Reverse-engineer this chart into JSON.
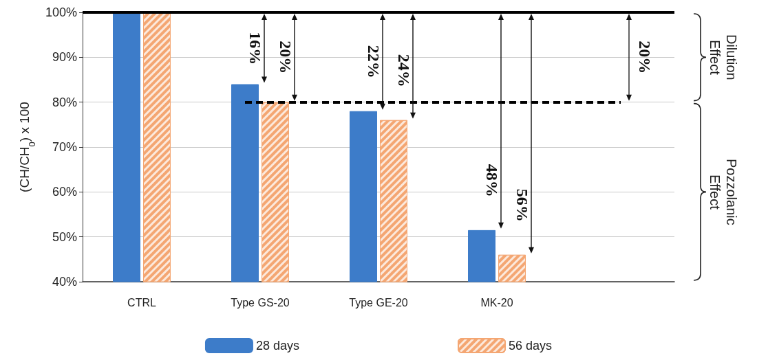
{
  "chart_data": {
    "type": "bar",
    "ylabel": "(CH/CH$_{0}$) x 100",
    "categories": [
      "CTRL",
      "Type GS-20",
      "Type GE-20",
      "MK-20",
      null
    ],
    "series": [
      {
        "name": "28 days",
        "color": "#3d7cc9",
        "values": [
          100,
          84,
          78,
          51.5,
          null
        ]
      },
      {
        "name": "56 days",
        "color": "#f4a672",
        "values": [
          100,
          80,
          76,
          46,
          null
        ]
      }
    ],
    "ylim": [
      40,
      100
    ],
    "yticks": [
      {
        "value": 40,
        "label": "40%"
      },
      {
        "value": 50,
        "label": "50%"
      },
      {
        "value": 60,
        "label": "60%"
      },
      {
        "value": 70,
        "label": "70%"
      },
      {
        "value": 80,
        "label": "80%"
      },
      {
        "value": 90,
        "label": "90%"
      },
      {
        "value": 100,
        "label": "100%"
      }
    ],
    "grid": "y",
    "legend": "bottom",
    "ref_lines": [
      {
        "axis": "y",
        "value": 100,
        "color": "#000000",
        "line_style": "solid"
      },
      {
        "axis": "y",
        "value": 80,
        "color": "#000000",
        "line_style": "dashed"
      }
    ],
    "annotations": [
      {
        "text": "16%",
        "x": "Type GS-20",
        "y": 84
      },
      {
        "text": "20%",
        "x": "Type GS-20",
        "y": 80
      },
      {
        "text": "22%",
        "x": "Type GE-20",
        "y": 78
      },
      {
        "text": "24%",
        "x": "Type GE-20",
        "y": 76
      },
      {
        "text": "48%",
        "x": "MK-20",
        "y": 51.5
      },
      {
        "text": "56%",
        "x": "MK-20",
        "y": 46
      },
      "20%",
      "Dilution Effect",
      "Pozzolanic Effect"
    ]
  }
}
